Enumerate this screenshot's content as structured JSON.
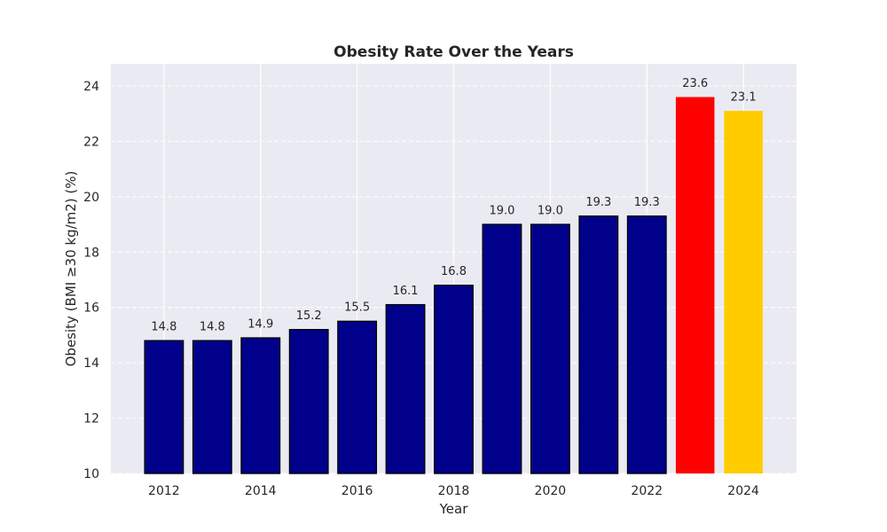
{
  "chart_data": {
    "type": "bar",
    "title": "Obesity Rate Over the Years",
    "xlabel": "Year",
    "ylabel": "Obesity (BMI ≥30 kg/m2) (%)",
    "x": [
      2012,
      2013,
      2014,
      2015,
      2016,
      2017,
      2018,
      2019,
      2020,
      2021,
      2022,
      2023,
      2024
    ],
    "values": [
      14.8,
      14.8,
      14.9,
      15.2,
      15.5,
      16.1,
      16.8,
      19.0,
      19.0,
      19.3,
      19.3,
      23.6,
      23.1
    ],
    "value_labels": [
      "14.8",
      "14.8",
      "14.9",
      "15.2",
      "15.5",
      "16.1",
      "16.8",
      "19.0",
      "19.0",
      "19.3",
      "19.3",
      "23.6",
      "23.1"
    ],
    "bar_colors": [
      "#00008b",
      "#00008b",
      "#00008b",
      "#00008b",
      "#00008b",
      "#00008b",
      "#00008b",
      "#00008b",
      "#00008b",
      "#00008b",
      "#00008b",
      "#ff0000",
      "#ffcc00"
    ],
    "bar_outlines": [
      true,
      true,
      true,
      true,
      true,
      true,
      true,
      true,
      true,
      true,
      true,
      false,
      false
    ],
    "ylim": [
      10,
      24.8
    ],
    "xlim": [
      2010.9,
      2025.1
    ],
    "y_ticks": [
      10,
      12,
      14,
      16,
      18,
      20,
      22,
      24
    ],
    "y_tick_labels": [
      "10",
      "12",
      "14",
      "16",
      "18",
      "20",
      "22",
      "24"
    ],
    "x_ticks": [
      2012,
      2014,
      2016,
      2018,
      2020,
      2022,
      2024
    ],
    "x_tick_labels": [
      "2012",
      "2014",
      "2016",
      "2018",
      "2020",
      "2022",
      "2024"
    ],
    "grid": {
      "x": "solid",
      "y": "dashed"
    },
    "colors": {
      "background": "#eaeaf2",
      "grid": "#ffffff",
      "outline": "#000000"
    }
  }
}
